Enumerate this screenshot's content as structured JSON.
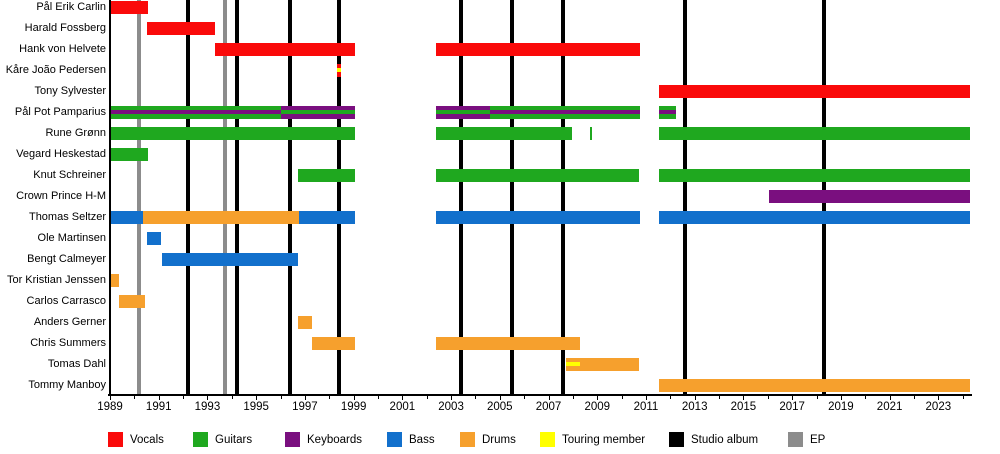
{
  "colors": {
    "vocals": "#fa0a0a",
    "guitars": "#1fa81f",
    "keyboards": "#7a0f7f",
    "bass": "#1270cc",
    "drums": "#f6a02d",
    "touring": "#ffff00",
    "album": "#000000",
    "ep": "#8c8c8c",
    "axis": "#000000"
  },
  "legend": {
    "items": [
      {
        "label": "Vocals",
        "color": "vocals"
      },
      {
        "label": "Guitars",
        "color": "guitars"
      },
      {
        "label": "Keyboards",
        "color": "keyboards"
      },
      {
        "label": "Bass",
        "color": "bass"
      },
      {
        "label": "Drums",
        "color": "drums"
      },
      {
        "label": "Touring member",
        "color": "touring"
      },
      {
        "label": "Studio album",
        "color": "album"
      },
      {
        "label": "EP",
        "color": "ep"
      }
    ]
  },
  "chart_data": {
    "type": "bar",
    "subtype": "gantt-timeline",
    "title": "",
    "xlabel": "",
    "ylabel": "",
    "x_axis": {
      "start": 1989,
      "end": 2024.3,
      "tick_labels": [
        "1989",
        "1991",
        "1993",
        "1995",
        "1997",
        "1999",
        "2001",
        "2003",
        "2005",
        "2007",
        "2009",
        "2011",
        "2013",
        "2015",
        "2017",
        "2019",
        "2021",
        "2023"
      ],
      "minor_tick_every_years": 1,
      "label_tick_every_years": 2
    },
    "album_line_years": [
      1992.2,
      1994.2,
      1996.4,
      1998.4,
      2003.4,
      2005.5,
      2007.6,
      2012.6,
      2018.3
    ],
    "ep_line_years": [
      1990.2,
      1993.7
    ],
    "members": [
      {
        "name": "Pål Erik Carlin",
        "segments": [
          {
            "start": 1989.0,
            "end": 1990.55,
            "role": "vocals"
          }
        ]
      },
      {
        "name": "Harald Fossberg",
        "segments": [
          {
            "start": 1990.5,
            "end": 1993.3,
            "role": "vocals"
          }
        ]
      },
      {
        "name": "Hank von Helvete",
        "segments": [
          {
            "start": 1993.3,
            "end": 1999.05,
            "role": "vocals"
          },
          {
            "start": 2002.4,
            "end": 2010.75,
            "role": "vocals"
          }
        ]
      },
      {
        "name": "Kåre João Pedersen",
        "segments": [
          {
            "start": 1998.3,
            "end": 1998.5,
            "role": "vocals",
            "stripe": "touring"
          }
        ]
      },
      {
        "name": "Tony Sylvester",
        "segments": [
          {
            "start": 2011.55,
            "end": 2024.3,
            "role": "vocals"
          }
        ]
      },
      {
        "name": "Pål Pot Pamparius",
        "segments": [
          {
            "start": 1989.0,
            "end": 1996.0,
            "role": "guitars",
            "stripe": "keyboards"
          },
          {
            "start": 1996.0,
            "end": 1999.05,
            "role": "keyboards",
            "stripe": "guitars"
          },
          {
            "start": 2002.4,
            "end": 2004.6,
            "role": "keyboards",
            "stripe": "guitars"
          },
          {
            "start": 2004.6,
            "end": 2010.75,
            "role": "guitars",
            "stripe": "keyboards"
          },
          {
            "start": 2011.55,
            "end": 2012.25,
            "role": "guitars",
            "stripe": "keyboards"
          }
        ]
      },
      {
        "name": "Rune Grønn",
        "segments": [
          {
            "start": 1989.0,
            "end": 1999.05,
            "role": "guitars"
          },
          {
            "start": 2002.4,
            "end": 2007.95,
            "role": "guitars"
          },
          {
            "start": 2008.7,
            "end": 2008.8,
            "role": "guitars"
          },
          {
            "start": 2011.55,
            "end": 2024.3,
            "role": "guitars"
          }
        ]
      },
      {
        "name": "Vegard Heskestad",
        "segments": [
          {
            "start": 1989.0,
            "end": 1990.55,
            "role": "guitars"
          }
        ]
      },
      {
        "name": "Knut Schreiner",
        "segments": [
          {
            "start": 1996.7,
            "end": 1999.05,
            "role": "guitars"
          },
          {
            "start": 2002.4,
            "end": 2010.7,
            "role": "guitars"
          },
          {
            "start": 2011.55,
            "end": 2024.3,
            "role": "guitars"
          }
        ]
      },
      {
        "name": "Crown Prince H-M",
        "segments": [
          {
            "start": 2016.05,
            "end": 2024.3,
            "role": "keyboards"
          }
        ]
      },
      {
        "name": "Thomas Seltzer",
        "segments": [
          {
            "start": 1989.0,
            "end": 1990.35,
            "role": "bass"
          },
          {
            "start": 1990.35,
            "end": 1996.75,
            "role": "drums"
          },
          {
            "start": 1996.75,
            "end": 1999.05,
            "role": "bass"
          },
          {
            "start": 2002.4,
            "end": 2010.75,
            "role": "bass"
          },
          {
            "start": 2011.55,
            "end": 2024.3,
            "role": "bass"
          }
        ]
      },
      {
        "name": "Ole Martinsen",
        "segments": [
          {
            "start": 1990.5,
            "end": 1991.1,
            "role": "bass"
          }
        ]
      },
      {
        "name": "Bengt Calmeyer",
        "segments": [
          {
            "start": 1991.15,
            "end": 1996.73,
            "role": "bass"
          }
        ]
      },
      {
        "name": "Tor Kristian Jenssen",
        "segments": [
          {
            "start": 1989.0,
            "end": 1989.35,
            "role": "drums"
          }
        ]
      },
      {
        "name": "Carlos Carrasco",
        "segments": [
          {
            "start": 1989.35,
            "end": 1990.45,
            "role": "drums"
          }
        ]
      },
      {
        "name": "Anders Gerner",
        "segments": [
          {
            "start": 1996.73,
            "end": 1997.3,
            "role": "drums"
          }
        ]
      },
      {
        "name": "Chris Summers",
        "segments": [
          {
            "start": 1997.3,
            "end": 1999.05,
            "role": "drums"
          },
          {
            "start": 2002.4,
            "end": 2008.3,
            "role": "drums"
          }
        ]
      },
      {
        "name": "Tomas Dahl",
        "segments": [
          {
            "start": 2007.72,
            "end": 2010.7,
            "role": "drums",
            "stripe": "touring",
            "stripe_end": 2008.3
          }
        ]
      },
      {
        "name": "Tommy Manboy",
        "segments": [
          {
            "start": 2011.55,
            "end": 2024.3,
            "role": "drums"
          }
        ]
      }
    ]
  }
}
